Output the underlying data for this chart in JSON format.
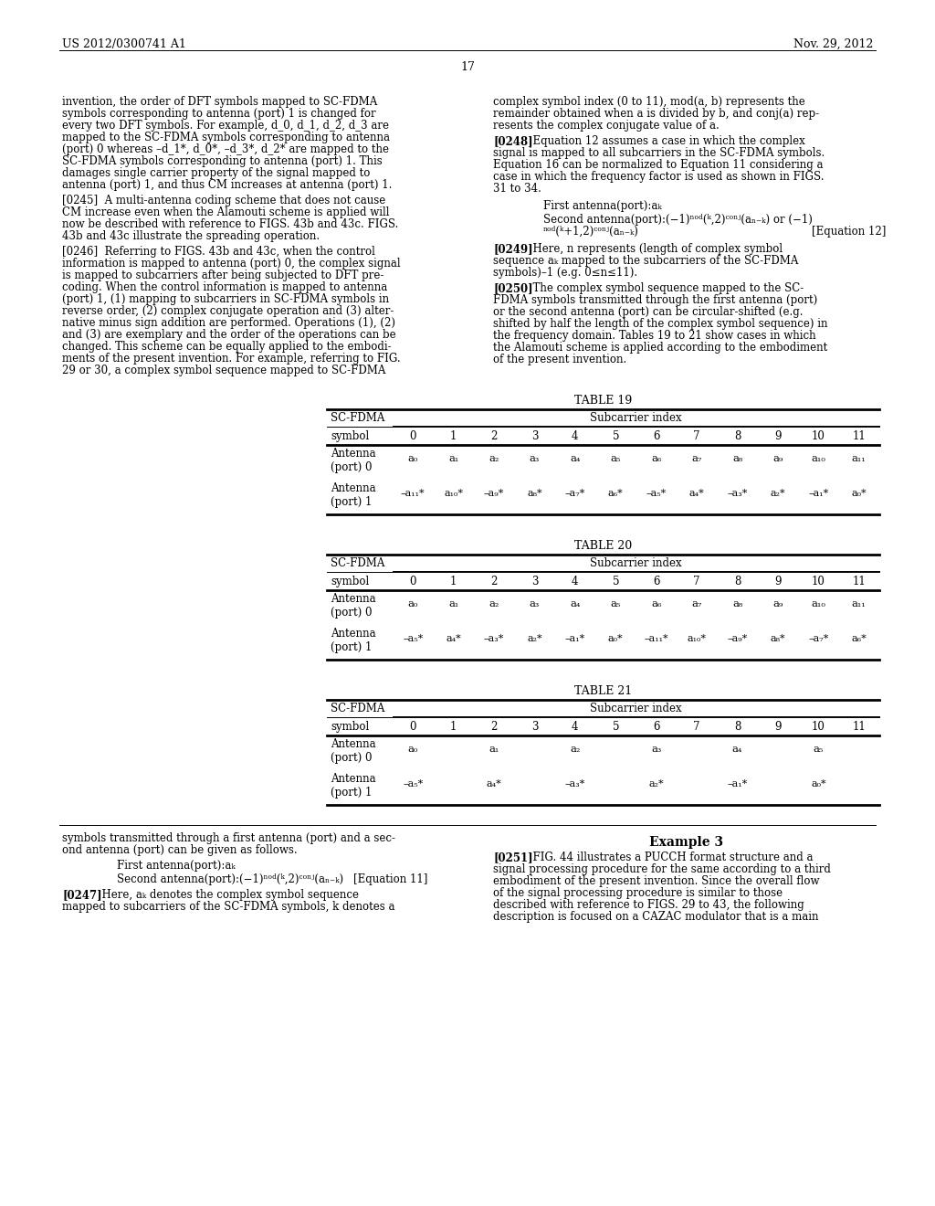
{
  "background_color": "#ffffff",
  "header_left": "US 2012/0300741 A1",
  "header_right": "Nov. 29, 2012",
  "page_number": "17",
  "left_col_para0": "invention, the order of DFT symbols mapped to SC-FDMA\nsymbols corresponding to antenna (port) 1 is changed for\nevery two DFT symbols. For example, d_0, d_1, d_2, d_3 are\nmapped to the SC-FDMA symbols corresponding to antenna\n(port) 0 whereas –d_1*, d_0*, –d_3*, d_2* are mapped to the\nSC-FDMA symbols corresponding to antenna (port) 1. This\ndamages single carrier property of the signal mapped to\nantenna (port) 1, and thus CM increases at antenna (port) 1.",
  "left_col_para1": "[0245]  A multi-antenna coding scheme that does not cause\nCM increase even when the Alamouti scheme is applied will\nnow be described with reference to FIGS. 43b and 43c. FIGS.\n43b and 43c illustrate the spreading operation.",
  "left_col_para2": "[0246]  Referring to FIGS. 43b and 43c, when the control\ninformation is mapped to antenna (port) 0, the complex signal\nis mapped to subcarriers after being subjected to DFT pre-\ncoding. When the control information is mapped to antenna\n(port) 1, (1) mapping to subcarriers in SC-FDMA symbols in\nreverse order, (2) complex conjugate operation and (3) alter-\nnative minus sign addition are performed. Operations (1), (2)\nand (3) are exemplary and the order of the operations can be\nchanged. This scheme can be equally applied to the embodi-\nments of the present invention. For example, referring to FIG.\n29 or 30, a complex symbol sequence mapped to SC-FDMA",
  "right_col_para0": "complex symbol index (0 to 11), mod(a, b) represents the\nremainder obtained when a is divided by b, and conj(a) rep-\nresents the complex conjugate value of a.",
  "right_col_para1_bold_tag": "[0248]",
  "right_col_para1": "  Equation 12 assumes a case in which the complex\nsignal is mapped to all subcarriers in the SC-FDMA symbols.\nEquation 16 can be normalized to Equation 11 considering a\ncase in which the frequency factor is used as shown in FIGS.\n31 to 34.",
  "eq12_line1": "First antenna(port):aₖ",
  "eq12_line2a": "Second antenna(port):(−1)ⁿᵒᵈ(ᵏ,2)ᶜᵒⁿʲ(aₙ₋ₖ) or (−1)",
  "eq12_line2b": "ⁿᵒᵈ(ᵏ+1,2)ᶜᵒⁿʲ(aₙ₋ₖ)",
  "eq12_ref": "[Equation 12]",
  "para0249_bold": "[0249]",
  "para0249": "  Here, n represents (length of complex symbol\nsequence aₖ mapped to the subcarriers of the SC-FDMA\nsymbols)–1 (e.g. 0≤n≤11).",
  "para0250_bold": "[0250]",
  "para0250": "  The complex symbol sequence mapped to the SC-\nFDMA symbols transmitted through the first antenna (port)\nor the second antenna (port) can be circular-shifted (e.g.\nshifted by half the length of the complex symbol sequence) in\nthe frequency domain. Tables 19 to 21 show cases in which\nthe Alamouti scheme is applied according to the embodiment\nof the present invention.",
  "table19_title": "TABLE 19",
  "table19_header1": "SC-FDMA",
  "table19_header2": "Subcarrier index",
  "table19_symbol_row": [
    "symbol",
    "0",
    "1",
    "2",
    "3",
    "4",
    "5",
    "6",
    "7",
    "8",
    "9",
    "10",
    "11"
  ],
  "table19_ant0_label": "Antenna\n(port) 0",
  "table19_ant0_data": [
    "a₀",
    "a₁",
    "a₂",
    "a₃",
    "a₄",
    "a₅",
    "a₆",
    "a₇",
    "a₈",
    "a₉",
    "a₁₀",
    "a₁₁"
  ],
  "table19_ant1_label": "Antenna\n(port) 1",
  "table19_ant1_data": [
    "–a₁₁*",
    "a₁₀*",
    "–a₉*",
    "a₈*",
    "–a₇*",
    "a₆*",
    "–a₅*",
    "a₄*",
    "–a₃*",
    "a₂*",
    "–a₁*",
    "a₀*"
  ],
  "table20_title": "TABLE 20",
  "table20_header1": "SC-FDMA",
  "table20_header2": "Subcarrier index",
  "table20_symbol_row": [
    "symbol",
    "0",
    "1",
    "2",
    "3",
    "4",
    "5",
    "6",
    "7",
    "8",
    "9",
    "10",
    "11"
  ],
  "table20_ant0_label": "Antenna\n(port) 0",
  "table20_ant0_data": [
    "a₀",
    "a₁",
    "a₂",
    "a₃",
    "a₄",
    "a₅",
    "a₆",
    "a₇",
    "a₈",
    "a₉",
    "a₁₀",
    "a₁₁"
  ],
  "table20_ant1_label": "Antenna\n(port) 1",
  "table20_ant1_data": [
    "–a₅*",
    "a₄*",
    "–a₃*",
    "a₂*",
    "–a₁*",
    "a₀*",
    "–a₁₁*",
    "a₁₀*",
    "–a₉*",
    "a₈*",
    "–a₇*",
    "a₆*"
  ],
  "table21_title": "TABLE 21",
  "table21_header1": "SC-FDMA",
  "table21_header2": "Subcarrier index",
  "table21_symbol_row": [
    "symbol",
    "0",
    "1",
    "2",
    "3",
    "4",
    "5",
    "6",
    "7",
    "8",
    "9",
    "10",
    "11"
  ],
  "table21_ant0_label": "Antenna\n(port) 0",
  "table21_ant0_data": [
    "a₀",
    "",
    "a₁",
    "",
    "a₂",
    "",
    "a₃",
    "",
    "a₄",
    "",
    "a₅",
    ""
  ],
  "table21_ant1_label": "Antenna\n(port) 1",
  "table21_ant1_data": [
    "–a₅*",
    "",
    "a₄*",
    "",
    "–a₃*",
    "",
    "a₂*",
    "",
    "–a₁*",
    "",
    "a₀*",
    ""
  ],
  "bottom_left_line1": "symbols transmitted through a first antenna (port) and a sec-",
  "bottom_left_line2": "ond antenna (port) can be given as follows.",
  "eq11_line1": "First antenna(port):aₖ",
  "eq11_line2": "Second antenna(port):(−1)ⁿᵒᵈ(ᵏ,2)ᶜᵒⁿʲ(aₙ₋ₖ)",
  "eq11_ref": "[Equation 11]",
  "para0247_bold": "[0247]",
  "para0247": "  Here, aₖ denotes the complex symbol sequence\nmapped to subcarriers of the SC-FDMA symbols, k denotes a",
  "bottom_right_header": "Example 3",
  "para0251_bold": "[0251]",
  "para0251": "  FIG. 44 illustrates a PUCCH format structure and a\nsignal processing procedure for the same according to a third\nembodiment of the present invention. Since the overall flow\nof the signal processing procedure is similar to those\ndescribed with reference to FIGS. 29 to 43, the following\ndescription is focused on a CAZAC modulator that is a main"
}
